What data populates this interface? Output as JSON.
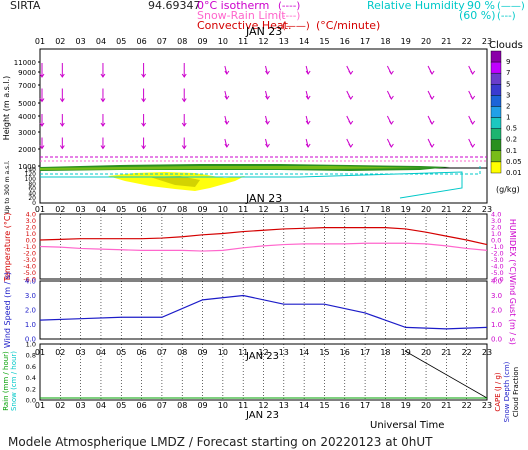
{
  "chart_data": {
    "type": "line",
    "header": {
      "station": "SIRTA",
      "station_value": "94.69347",
      "legend_isotherm": "0°C isotherm",
      "legend_isotherm_sym": "(----)",
      "legend_snow_rain": "Snow-Rain Limit",
      "legend_snow_rain_sym": "(----)",
      "legend_convective": "Convective Heat.",
      "legend_convective_sym": "(——)",
      "legend_convective_unit": "(°C/minute)",
      "legend_rh": "Relative Humidity",
      "legend_rh_90": "90 %",
      "legend_rh_60": "(60 %)",
      "legend_rh_sym_90": "(——)",
      "legend_rh_sym_60": "(---)"
    },
    "hours": [
      "01",
      "02",
      "03",
      "04",
      "05",
      "06",
      "07",
      "08",
      "09",
      "10",
      "11",
      "12",
      "13",
      "14",
      "15",
      "16",
      "17",
      "18",
      "19",
      "20",
      "21",
      "22",
      "23"
    ],
    "day_label": "JAN 23",
    "clouds_panel": {
      "ylabel": "Height  (m a.s.l.)",
      "ylabel_low": "Up to 300 m a.s.l.",
      "upper_ticks": [
        1000,
        2000,
        3000,
        4000,
        5000,
        7000,
        9000,
        11000
      ],
      "lower_ticks": [
        0,
        20,
        40,
        60,
        80,
        100,
        120,
        140
      ],
      "colorbar_title": "Clouds",
      "colorbar_labels": [
        "9",
        "7",
        "5",
        "3",
        "2",
        "1",
        "0.5",
        "0.2",
        "0.1",
        "0.05",
        "0.01"
      ],
      "colorbar_unit": "(g/kg)",
      "colorbar_colors": [
        "#8a00a8",
        "#c000ff",
        "#6a3ccc",
        "#3a3ad0",
        "#1c64d8",
        "#22a0e8",
        "#1cc8c0",
        "#1cb470",
        "#2a9020",
        "#78bc18",
        "#ffff00"
      ],
      "wind_rows_m": [
        11000,
        9000,
        7000,
        5000,
        3000,
        1000
      ]
    },
    "temperature_panel": {
      "ylabel_left": "Temperature (°C)",
      "ylabel_right": "HUMIDEX (°C)",
      "ticks": [
        "4.0",
        "3.0",
        "2.0",
        "1.0",
        "0.0",
        "-1.0",
        "-2.0",
        "-3.0",
        "-4.0",
        "-5.0",
        "-6.0"
      ],
      "ylim": [
        -6,
        4
      ],
      "series": [
        {
          "color": "#d40000",
          "values": [
            0.0,
            0.1,
            0.2,
            0.2,
            0.2,
            0.2,
            0.3,
            0.5,
            0.8,
            1.0,
            1.3,
            1.5,
            1.7,
            1.8,
            1.9,
            1.9,
            1.9,
            1.9,
            1.7,
            1.2,
            0.6,
            0.0,
            -0.7
          ]
        },
        {
          "color": "#ff66cc",
          "values": [
            -1.0,
            -1.1,
            -1.3,
            -1.4,
            -1.5,
            -1.6,
            -1.6,
            -1.6,
            -1.7,
            -1.6,
            -1.2,
            -0.9,
            -0.7,
            -0.6,
            -0.6,
            -0.6,
            -0.5,
            -0.5,
            -0.5,
            -0.6,
            -0.9,
            -1.3,
            -1.6
          ]
        }
      ]
    },
    "wind_panel": {
      "ylabel_left": "Wind Speed (m / s)",
      "ylabel_right": "Wind Gust (m / s)",
      "ticks": [
        "4.0",
        "3.0",
        "2.0",
        "1.0",
        "0.0"
      ],
      "ylim": [
        0,
        4
      ],
      "series": [
        {
          "color": "#1c1cc8",
          "x": [
            1,
            3,
            5,
            7,
            9,
            11,
            13,
            15,
            17,
            19,
            21,
            23
          ],
          "values": [
            1.3,
            1.4,
            1.5,
            1.5,
            2.7,
            3.0,
            2.4,
            2.4,
            1.8,
            0.8,
            0.7,
            0.8
          ]
        }
      ]
    },
    "precip_panel": {
      "ylabel_left_1": "Rain (mm / hour)",
      "ylabel_left_2": "Snow (cm / hour)",
      "ylabel_right_1": "CAPE (J / g)",
      "ylabel_right_2": "Snow Depth (cm)",
      "ylabel_right_3": "Cloud Fraction",
      "ticks": [
        "1.0",
        "0.8",
        "0.6",
        "0.4",
        "0.2",
        "0.0"
      ],
      "ylim": [
        0,
        1
      ]
    },
    "xlabel": "Universal Time",
    "footer": "Modele Atmospherique LMDZ / Forecast starting on 20220123 at 0hUT"
  }
}
